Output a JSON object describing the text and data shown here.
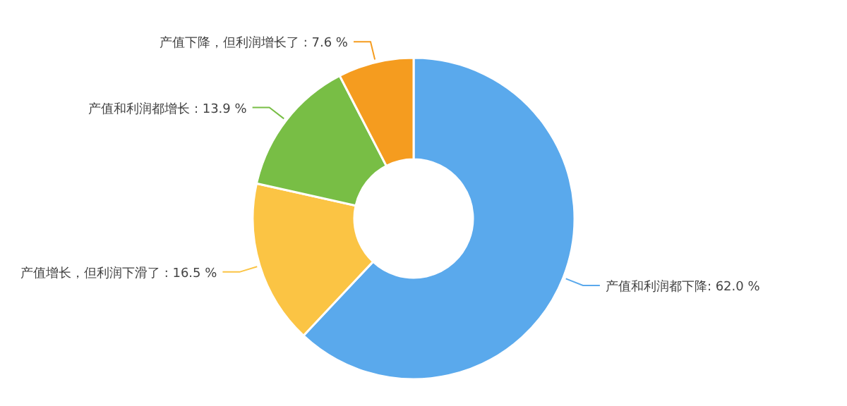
{
  "chart_data": {
    "type": "donut",
    "categories": [
      "产值和利润都下降",
      "产值增长，但利润下滑了",
      "产值和利润都增长",
      "产值下降，但利润增长了"
    ],
    "values": [
      62.0,
      16.5,
      13.9,
      7.6
    ],
    "colors": [
      "#5aa9ec",
      "#fbc444",
      "#78be45",
      "#f59c1f"
    ],
    "value_labels": [
      ": 62.0 %",
      " : 16.5 %",
      " : 13.9 %",
      " : 7.6 %"
    ]
  }
}
